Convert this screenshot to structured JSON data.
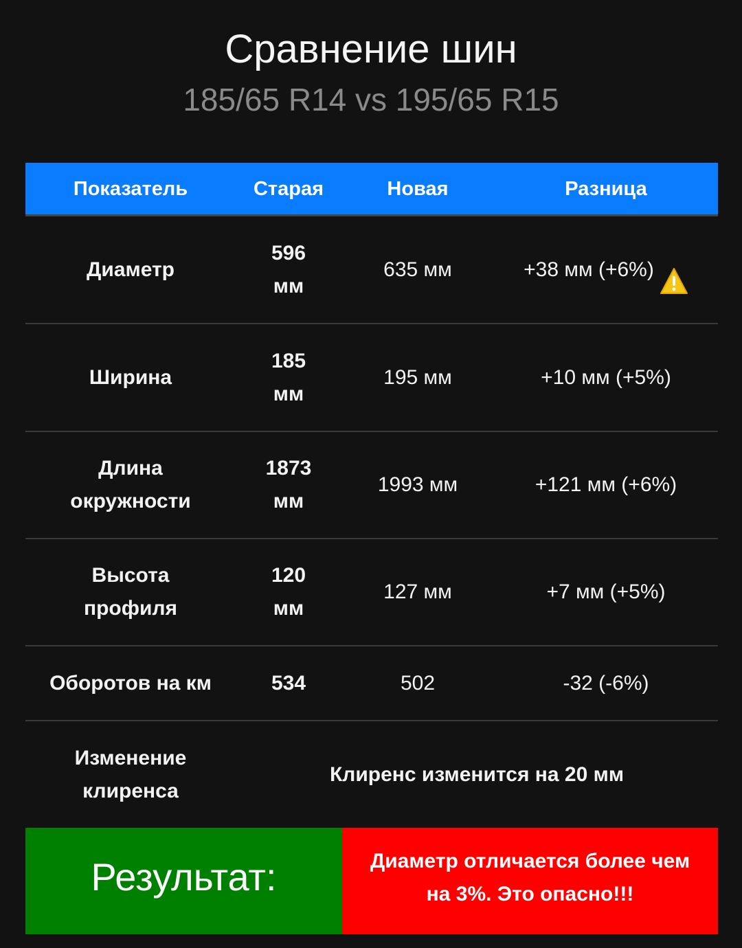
{
  "header": {
    "title": "Сравнение шин",
    "subtitle": "185/65 R14 vs 195/65 R15"
  },
  "table": {
    "columns": [
      "Показатель",
      "Старая",
      "Новая",
      "Разница"
    ],
    "rows": [
      {
        "label": "Диаметр",
        "old": "596\nмм",
        "new": "635 мм",
        "diff": "+38 мм (+6%)",
        "warning_icon": "warning-triangle-icon"
      },
      {
        "label": "Ширина",
        "old": "185\nмм",
        "new": "195 мм",
        "diff": "+10 мм (+5%)"
      },
      {
        "label": "Длина\nокружности",
        "old": "1873\nмм",
        "new": "1993 мм",
        "diff": "+121 мм (+6%)"
      },
      {
        "label": "Высота\nпрофиля",
        "old": "120\nмм",
        "new": "127 мм",
        "diff": "+7 мм (+5%)"
      },
      {
        "label": "Оборотов на км",
        "old": "534",
        "new": "502",
        "diff": "-32 (-6%)"
      }
    ],
    "clearance": {
      "label": "Изменение\nклиренса",
      "value": "Клиренс изменится на 20 мм"
    }
  },
  "result": {
    "label": "Результат:",
    "message": "Диаметр отличается более чем на 3%. Это опасно!!!"
  },
  "colors": {
    "header_bg": "#0a7cff",
    "result_label_bg": "#008000",
    "result_message_bg": "#ff0000",
    "warning": "#f5c518"
  }
}
